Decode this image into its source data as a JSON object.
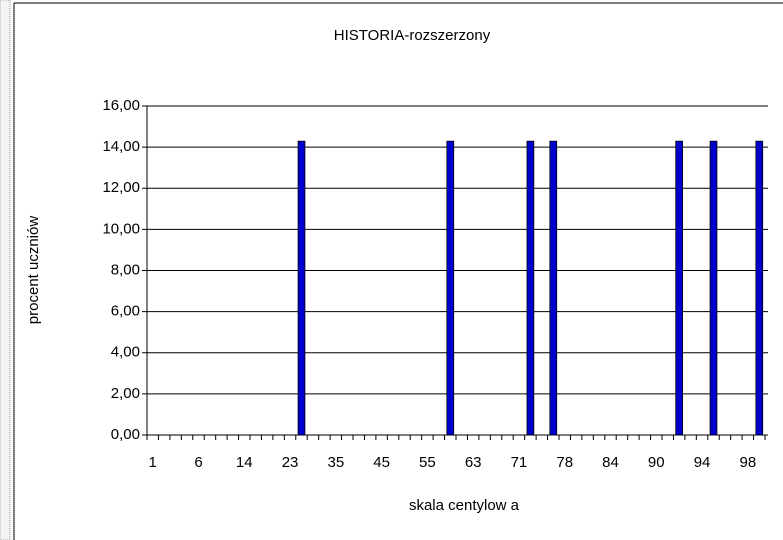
{
  "chart_data": {
    "type": "bar",
    "title": "HISTORIA-rozszerzony",
    "x_label": "skala centylow a",
    "y_label": "procent uczniów",
    "categories": [
      "1",
      null,
      null,
      null,
      "6",
      null,
      null,
      null,
      "14",
      null,
      null,
      null,
      "23",
      null,
      null,
      null,
      "35",
      null,
      null,
      null,
      "45",
      null,
      null,
      null,
      "55",
      null,
      null,
      null,
      "63",
      null,
      null,
      null,
      "71",
      null,
      null,
      null,
      "78",
      null,
      null,
      null,
      "84",
      null,
      null,
      null,
      "90",
      null,
      null,
      null,
      "94",
      null,
      null,
      null,
      "98",
      null
    ],
    "values": [
      0,
      0,
      0,
      0,
      0,
      0,
      0,
      0,
      0,
      0,
      0,
      0,
      0,
      14.29,
      0,
      0,
      0,
      0,
      0,
      0,
      0,
      0,
      0,
      0,
      0,
      0,
      14.29,
      0,
      0,
      0,
      0,
      0,
      0,
      14.29,
      0,
      14.29,
      0,
      0,
      0,
      0,
      0,
      0,
      0,
      0,
      0,
      0,
      14.29,
      0,
      0,
      14.29,
      0,
      0,
      0,
      14.29
    ],
    "color": "#0000cc",
    "ylim": [
      0,
      16
    ],
    "yticks": [
      {
        "value": 0,
        "label": "0,00"
      },
      {
        "value": 2,
        "label": "2,00"
      },
      {
        "value": 4,
        "label": "4,00"
      },
      {
        "value": 6,
        "label": "6,00"
      },
      {
        "value": 8,
        "label": "8,00"
      },
      {
        "value": 10,
        "label": "10,00"
      },
      {
        "value": 12,
        "label": "12,00"
      },
      {
        "value": 14,
        "label": "14,00"
      },
      {
        "value": 16,
        "label": "16,00"
      }
    ],
    "grid": true
  }
}
